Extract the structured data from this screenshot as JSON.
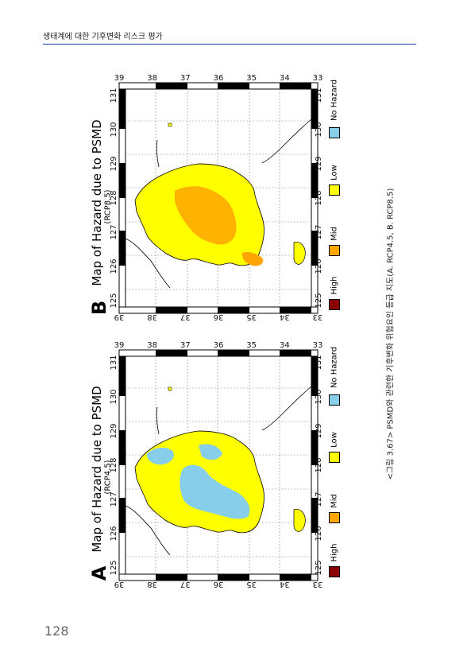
{
  "header": {
    "title": "생태계에 대한 기후변화 리스크 평가"
  },
  "page_number": "128",
  "caption": "<그림 3.67> PSMD와 관련한 기후변화 위험요인 등급 지도(A. RCP4.5, B. RCP8.5)",
  "colors": {
    "high": "#8b0000",
    "mid": "#ffa500",
    "low": "#ffff00",
    "none": "#87ceeb"
  },
  "legend": [
    "High",
    "Mid",
    "Low",
    "No Hazard"
  ],
  "lon_ticks": [
    "125",
    "126",
    "127",
    "128",
    "129",
    "130",
    "131"
  ],
  "lat_ticks": [
    "39",
    "38",
    "37",
    "36",
    "35",
    "34",
    "33"
  ],
  "maps": [
    {
      "letter": "A",
      "title": "Map of Hazard due to PSMD",
      "scenario": "(RCP4.5)"
    },
    {
      "letter": "B",
      "title": "Map of Hazard due to PSMD",
      "scenario": "(RCP8.5)"
    }
  ]
}
